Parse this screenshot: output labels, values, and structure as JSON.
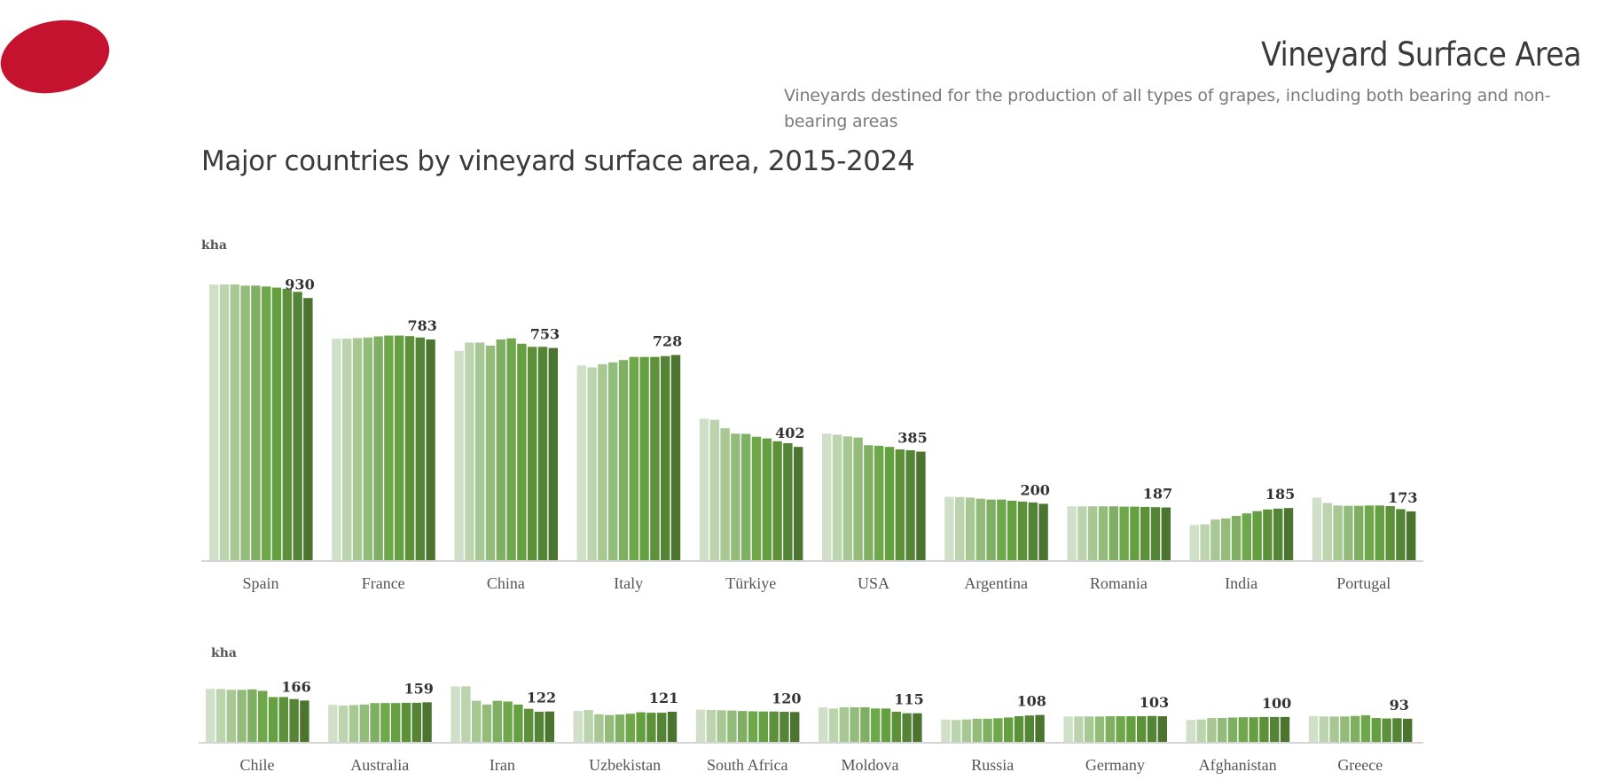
{
  "header": {
    "title": "Vineyard Surface Area",
    "subtitle": "Vineyards destined for the production of all types of grapes, including both bearing and non-bearing areas",
    "logo_color": "#c4122f"
  },
  "chart_data": [
    {
      "type": "bar",
      "title": "Major countries by vineyard surface area, 2015-2024",
      "ylabel": "kha",
      "years": [
        "2015",
        "2016",
        "2017",
        "2018",
        "2019",
        "2020",
        "2021",
        "2022",
        "2023",
        "2024"
      ],
      "colors": [
        "#d0e0c8",
        "#bcd4ae",
        "#a7c793",
        "#93bb7a",
        "#7faf62",
        "#6ea84a",
        "#65a040",
        "#5d9139",
        "#548435",
        "#4b752e"
      ],
      "ylim": [
        0,
        1000
      ],
      "grid": false,
      "categories": [
        "Spain",
        "France",
        "China",
        "Italy",
        "Türkiye",
        "USA",
        "Argentina",
        "Romania",
        "India",
        "Portugal"
      ],
      "labels": [
        "930",
        "783",
        "753",
        "728",
        "402",
        "385",
        "200",
        "187",
        "185",
        "173"
      ],
      "series": [
        [
          978,
          978,
          978,
          974,
          974,
          971,
          967,
          963,
          952,
          930
        ],
        [
          786,
          786,
          788,
          790,
          794,
          797,
          797,
          795,
          790,
          783
        ],
        [
          743,
          772,
          772,
          761,
          783,
          787,
          768,
          757,
          757,
          753
        ],
        [
          691,
          684,
          695,
          702,
          710,
          721,
          721,
          721,
          724,
          728
        ],
        [
          502,
          498,
          468,
          449,
          448,
          438,
          432,
          422,
          415,
          402
        ],
        [
          449,
          445,
          439,
          435,
          408,
          406,
          402,
          393,
          390,
          385
        ],
        [
          225,
          224,
          222,
          218,
          215,
          215,
          211,
          208,
          205,
          200
        ],
        [
          191,
          191,
          191,
          191,
          191,
          190,
          190,
          189,
          188,
          187
        ],
        [
          125,
          127,
          144,
          148,
          157,
          166,
          174,
          180,
          183,
          185
        ],
        [
          222,
          203,
          194,
          193,
          193,
          194,
          194,
          192,
          181,
          173
        ]
      ]
    },
    {
      "type": "bar",
      "ylabel": "kha",
      "ylim": [
        0,
        250
      ],
      "grid": false,
      "categories": [
        "Chile",
        "Australia",
        "Iran",
        "Uzbekistan",
        "South Africa",
        "Moldova",
        "Russia",
        "Germany",
        "Afghanistan",
        "Greece"
      ],
      "labels": [
        "166",
        "159",
        "122",
        "121",
        "120",
        "115",
        "108",
        "103",
        "100",
        "93"
      ],
      "series": [
        [
          213,
          212,
          209,
          209,
          211,
          205,
          180,
          180,
          172,
          166
        ],
        [
          149,
          146,
          148,
          150,
          156,
          156,
          156,
          157,
          157,
          159
        ],
        [
          223,
          223,
          165,
          150,
          165,
          162,
          150,
          133,
          121,
          122
        ],
        [
          124,
          128,
          111,
          108,
          110,
          113,
          119,
          117,
          117,
          121
        ],
        [
          130,
          128,
          127,
          126,
          124,
          123,
          122,
          122,
          121,
          120
        ],
        [
          139,
          134,
          139,
          139,
          139,
          134,
          134,
          121,
          115,
          115
        ],
        [
          90,
          88,
          90,
          93,
          93,
          95,
          98,
          103,
          106,
          108
        ],
        [
          102,
          102,
          102,
          102,
          103,
          103,
          103,
          103,
          104,
          103
        ],
        [
          88,
          90,
          96,
          96,
          98,
          99,
          99,
          100,
          100,
          100
        ],
        [
          104,
          102,
          102,
          102,
          104,
          107,
          96,
          94,
          95,
          93
        ]
      ]
    }
  ]
}
